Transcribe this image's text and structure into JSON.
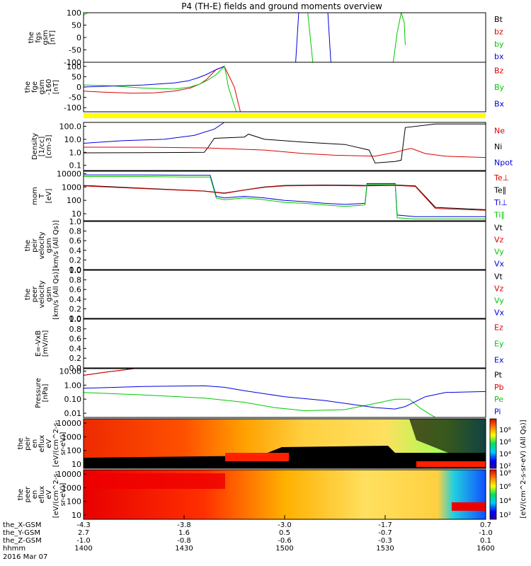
{
  "title": "P4 (TH-E) fields and ground moments overview",
  "chart_data": [
    {
      "type": "line",
      "ylabel": [
        "the",
        "fgs",
        "gsm",
        "[nT]"
      ],
      "yrange": [
        -100,
        100
      ],
      "yticks": [
        "100",
        "50",
        "0",
        "-50",
        "-100"
      ],
      "legend": [
        {
          "label": "Bt",
          "color": "#000000"
        },
        {
          "label": "bz",
          "color": "#dd0000"
        },
        {
          "label": "by",
          "color": "#00c800"
        },
        {
          "label": "bx",
          "color": "#0000dd"
        }
      ],
      "series": [
        {
          "color": "#00c800",
          "x": [
            1400,
            1402,
            1420,
            1509,
            1511.5,
            1514,
            1554,
            1556,
            1558,
            1559.5,
            1560
          ],
          "y": [
            90,
            100,
            100,
            100,
            100,
            -100,
            -100,
            20,
            100,
            60,
            -30
          ]
        },
        {
          "color": "#0000dd",
          "x": [
            1400,
            1505.5,
            1507,
            1508,
            1521.5,
            1523,
            1600
          ],
          "y": [
            -100,
            -100,
            100,
            100,
            100,
            -100,
            -100
          ]
        }
      ]
    },
    {
      "type": "line",
      "ylabel": [
        "the",
        "fge",
        "gsm",
        "-160",
        "[nT]"
      ],
      "yrange": [
        -120,
        120
      ],
      "yticks": [
        "100",
        "50",
        "0",
        "-50",
        "-100"
      ],
      "legend": [
        {
          "label": "Bz",
          "color": "#dd0000"
        },
        {
          "label": "By",
          "color": "#00c800"
        },
        {
          "label": "Bx",
          "color": "#0000dd"
        }
      ],
      "series": [
        {
          "color": "#dd0000",
          "x": [
            1400,
            1410,
            1425,
            1435,
            1445,
            1453,
            1458,
            1461,
            1463,
            1466,
            1470,
            1472,
            1475,
            1478
          ],
          "y": [
            -20,
            -25,
            -30,
            -28,
            -20,
            -5,
            15,
            35,
            55,
            85,
            100,
            60,
            0,
            -120
          ]
        },
        {
          "color": "#00c800",
          "x": [
            1400,
            1415,
            1430,
            1445,
            1453,
            1458,
            1462,
            1466,
            1470,
            1471,
            1472,
            1474,
            1476
          ],
          "y": [
            10,
            5,
            -5,
            -10,
            0,
            15,
            35,
            60,
            100,
            60,
            0,
            -60,
            -120
          ]
        },
        {
          "color": "#0000dd",
          "x": [
            1400,
            1415,
            1430,
            1445,
            1452,
            1457,
            1461,
            1465,
            1470
          ],
          "y": [
            0,
            5,
            10,
            20,
            30,
            45,
            60,
            80,
            100
          ]
        }
      ]
    },
    {
      "type": "line",
      "ylabel": [
        "Density",
        "[1/cc]",
        "[cm-3]"
      ],
      "scale": "log",
      "yrange": [
        0.04,
        200
      ],
      "yticks": [
        "100.0",
        "10.0",
        "1.0",
        "0.1"
      ],
      "legend": [
        {
          "label": "Ne",
          "color": "#dd0000"
        },
        {
          "label": "Ni",
          "color": "#000000"
        },
        {
          "label": "Npot",
          "color": "#0000dd"
        }
      ],
      "series": [
        {
          "color": "#000000",
          "x": [
            1400,
            1430,
            1460,
            1462,
            1465,
            1480,
            1482,
            1490,
            1510,
            1530,
            1542,
            1545,
            1555,
            1558,
            1560,
            1575,
            1600
          ],
          "y": [
            0.9,
            0.95,
            1.0,
            2.5,
            12,
            15,
            25,
            10,
            6,
            4,
            1.5,
            0.15,
            0.2,
            0.25,
            80,
            150,
            150
          ]
        },
        {
          "color": "#dd0000",
          "x": [
            1400,
            1430,
            1460,
            1490,
            1510,
            1525,
            1545,
            1555,
            1560,
            1563,
            1570,
            1580,
            1600
          ],
          "y": [
            2.5,
            2.5,
            2.2,
            1.5,
            0.8,
            0.6,
            0.5,
            1.0,
            1.6,
            2.0,
            0.8,
            0.5,
            0.4
          ]
        },
        {
          "color": "#0000dd",
          "x": [
            1400,
            1420,
            1440,
            1455,
            1465,
            1470
          ],
          "y": [
            5,
            8,
            10,
            20,
            60,
            200
          ]
        }
      ]
    },
    {
      "type": "line",
      "ylabel": [
        "mom",
        "T",
        "[eV]"
      ],
      "scale": "log",
      "yrange": [
        3,
        15000
      ],
      "yticks": [
        "10000",
        "1000",
        "100",
        "10"
      ],
      "legend": [
        {
          "label": "Te⊥",
          "color": "#dd0000"
        },
        {
          "label": "Te∥",
          "color": "#000000"
        },
        {
          "label": "Ti⊥",
          "color": "#0000dd"
        },
        {
          "label": "Ti∥",
          "color": "#00c800"
        }
      ],
      "series": [
        {
          "color": "#000000",
          "x": [
            1400,
            1430,
            1460,
            1470,
            1480,
            1490,
            1500,
            1520,
            1540,
            1555,
            1565,
            1575,
            1600
          ],
          "y": [
            1300,
            800,
            500,
            350,
            600,
            1000,
            1300,
            1400,
            1300,
            1400,
            1200,
            30,
            20
          ]
        },
        {
          "color": "#dd0000",
          "x": [
            1400,
            1430,
            1460,
            1470,
            1480,
            1490,
            1500,
            1520,
            1540,
            1555,
            1565,
            1575,
            1600
          ],
          "y": [
            1200,
            750,
            480,
            330,
            580,
            950,
            1200,
            1300,
            1200,
            1300,
            1100,
            25,
            18
          ]
        },
        {
          "color": "#0000dd",
          "x": [
            1400,
            1430,
            1450,
            1463,
            1466,
            1470,
            1480,
            1490,
            1500,
            1510,
            1520,
            1530,
            1540,
            1541,
            1555,
            1556,
            1565,
            1600
          ],
          "y": [
            8000,
            8000,
            7500,
            7500,
            200,
            150,
            200,
            150,
            100,
            80,
            60,
            50,
            60,
            1800,
            1800,
            8,
            6,
            6
          ]
        },
        {
          "color": "#00c800",
          "x": [
            1400,
            1430,
            1450,
            1463,
            1466,
            1470,
            1480,
            1490,
            1500,
            1510,
            1520,
            1530,
            1540,
            1541,
            1555,
            1556,
            1565,
            1600
          ],
          "y": [
            6000,
            6000,
            5500,
            5500,
            150,
            110,
            150,
            110,
            70,
            60,
            45,
            35,
            45,
            1500,
            1500,
            5,
            4,
            4
          ]
        }
      ]
    },
    {
      "type": "line",
      "ylabel": [
        "the",
        "peir",
        "velocity",
        "gsm",
        "[km/s (All Qs)]"
      ],
      "yrange": [
        0,
        1
      ],
      "yticks": [
        "1.0",
        "0.8",
        "0.6",
        "0.4",
        "0.2",
        "0.0"
      ],
      "legend": [
        {
          "label": "Vt",
          "color": "#000000"
        },
        {
          "label": "Vz",
          "color": "#dd0000"
        },
        {
          "label": "Vy",
          "color": "#00c800"
        },
        {
          "label": "Vx",
          "color": "#0000dd"
        }
      ],
      "series": []
    },
    {
      "type": "line",
      "ylabel": [
        "the",
        "peer",
        "velocity",
        "gsm",
        "[km/s (All Qs)]"
      ],
      "yrange": [
        0,
        1
      ],
      "yticks": [
        "1.0",
        "0.8",
        "0.6",
        "0.4",
        "0.2",
        "0.0"
      ],
      "legend": [
        {
          "label": "Vt",
          "color": "#000000"
        },
        {
          "label": "Vz",
          "color": "#dd0000"
        },
        {
          "label": "Vy",
          "color": "#00c800"
        },
        {
          "label": "Vx",
          "color": "#0000dd"
        }
      ],
      "series": []
    },
    {
      "type": "line",
      "ylabel": [
        "E=-VxB",
        "[mV/m]"
      ],
      "yrange": [
        0,
        1
      ],
      "yticks": [
        "1.0",
        "0.8",
        "0.6",
        "0.4",
        "0.2",
        "0.0"
      ],
      "legend": [
        {
          "label": "Ez",
          "color": "#dd0000"
        },
        {
          "label": "Ey",
          "color": "#00c800"
        },
        {
          "label": "Ex",
          "color": "#0000dd"
        }
      ],
      "series": []
    },
    {
      "type": "line",
      "ylabel": [
        "Pressure",
        "[nPa]"
      ],
      "scale": "log",
      "yrange": [
        0.005,
        15
      ],
      "yticks": [
        "10.00",
        "1.00",
        "0.10",
        "0.01"
      ],
      "legend": [
        {
          "label": "Pt",
          "color": "#000000"
        },
        {
          "label": "Pb",
          "color": "#dd0000"
        },
        {
          "label": "Pe",
          "color": "#00c800"
        },
        {
          "label": "Pi",
          "color": "#0000dd"
        }
      ],
      "series": [
        {
          "color": "#000000",
          "x": [
            1400,
            1410,
            1420,
            1425
          ],
          "y": [
            5,
            8,
            12,
            15
          ]
        },
        {
          "color": "#dd0000",
          "x": [
            1400,
            1410,
            1420,
            1425
          ],
          "y": [
            5,
            8,
            12,
            15
          ]
        },
        {
          "color": "#00c800",
          "x": [
            1400,
            1430,
            1460,
            1480,
            1495,
            1510,
            1530,
            1545,
            1555,
            1562,
            1568,
            1575,
            1600
          ],
          "y": [
            0.3,
            0.2,
            0.12,
            0.06,
            0.025,
            0.015,
            0.018,
            0.05,
            0.1,
            0.1,
            0.02,
            0.005,
            0.005
          ]
        },
        {
          "color": "#0000dd",
          "x": [
            1400,
            1430,
            1460,
            1470,
            1480,
            1500,
            1520,
            1535,
            1545,
            1555,
            1560,
            1570,
            1580,
            1600
          ],
          "y": [
            0.6,
            0.8,
            0.9,
            0.7,
            0.4,
            0.15,
            0.08,
            0.04,
            0.025,
            0.02,
            0.03,
            0.15,
            0.3,
            0.35
          ]
        }
      ]
    },
    {
      "type": "heatmap",
      "ylabel": [
        "the",
        "peir",
        "en",
        "eflux",
        "eV",
        "[eV/(cm^2-s-",
        "sr-eV)]"
      ],
      "yticks": [
        "10000",
        "1000",
        "100",
        "10"
      ]
    },
    {
      "type": "heatmap",
      "ylabel": [
        "the",
        "peer",
        "en",
        "eflux",
        "eV",
        "[eV/(cm^2-s-",
        "sr-eV)]"
      ],
      "yticks": [
        "10000",
        "1000",
        "100",
        "10"
      ]
    }
  ],
  "colorbar": {
    "ticks_top": [
      "10⁸",
      "10⁶",
      "10⁴",
      "10²"
    ],
    "ticks_bottom": [
      "10⁸",
      "10⁶",
      "10⁴",
      "10²"
    ],
    "label": "[eV/(cm^2-s-sr-eV) (All Qs)]"
  },
  "xaxis": {
    "range": [
      1400,
      1600
    ],
    "rows": [
      {
        "label": "the_X-GSM",
        "values": [
          "-4.3",
          "-3.8",
          "-3.0",
          "-1.7",
          "0.7"
        ]
      },
      {
        "label": "the_Y-GSM",
        "values": [
          "2.7",
          "1.6",
          "0.5",
          "-0.7",
          "-1.0"
        ]
      },
      {
        "label": "the_Z-GSM",
        "values": [
          "-1.0",
          "-0.8",
          "-0.6",
          "-0.3",
          "0.1"
        ]
      },
      {
        "label": "hhmm",
        "values": [
          "1400",
          "1430",
          "1500",
          "1530",
          "1600"
        ]
      }
    ],
    "date": "2016 Mar 07"
  },
  "colors": {
    "yellow_bar": "#ffff00"
  }
}
